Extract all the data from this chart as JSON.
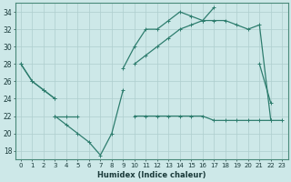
{
  "xlabel": "Humidex (Indice chaleur)",
  "x": [
    0,
    1,
    2,
    3,
    4,
    5,
    6,
    7,
    8,
    9,
    10,
    11,
    12,
    13,
    14,
    15,
    16,
    17,
    18,
    19,
    20,
    21,
    22,
    23
  ],
  "line1": [
    28,
    26,
    25,
    24,
    null,
    null,
    null,
    null,
    null,
    27.5,
    30,
    32,
    32,
    33,
    34,
    33.5,
    33,
    34.5,
    null,
    null,
    null,
    28,
    23.5,
    null
  ],
  "line2": [
    28,
    26,
    25,
    24,
    null,
    null,
    null,
    null,
    null,
    null,
    28,
    29,
    30,
    31,
    32,
    32.5,
    33,
    33,
    33,
    32.5,
    32,
    32.5,
    21.5,
    null
  ],
  "line3": [
    null,
    null,
    null,
    22,
    22,
    22,
    null,
    null,
    null,
    null,
    22,
    22,
    22,
    22,
    22,
    22,
    22,
    21.5,
    21.5,
    21.5,
    21.5,
    21.5,
    21.5,
    21.5
  ],
  "line4": [
    null,
    null,
    null,
    22,
    21,
    20,
    19,
    17.5,
    20,
    25,
    null,
    null,
    null,
    null,
    null,
    null,
    null,
    null,
    null,
    null,
    null,
    null,
    null,
    null
  ],
  "ylim": [
    17,
    35
  ],
  "yticks": [
    18,
    20,
    22,
    24,
    26,
    28,
    30,
    32,
    34
  ],
  "xlim": [
    -0.5,
    23.5
  ],
  "color": "#2e7d6e",
  "bg_color": "#cde8e8",
  "grid_color": "#aecece"
}
